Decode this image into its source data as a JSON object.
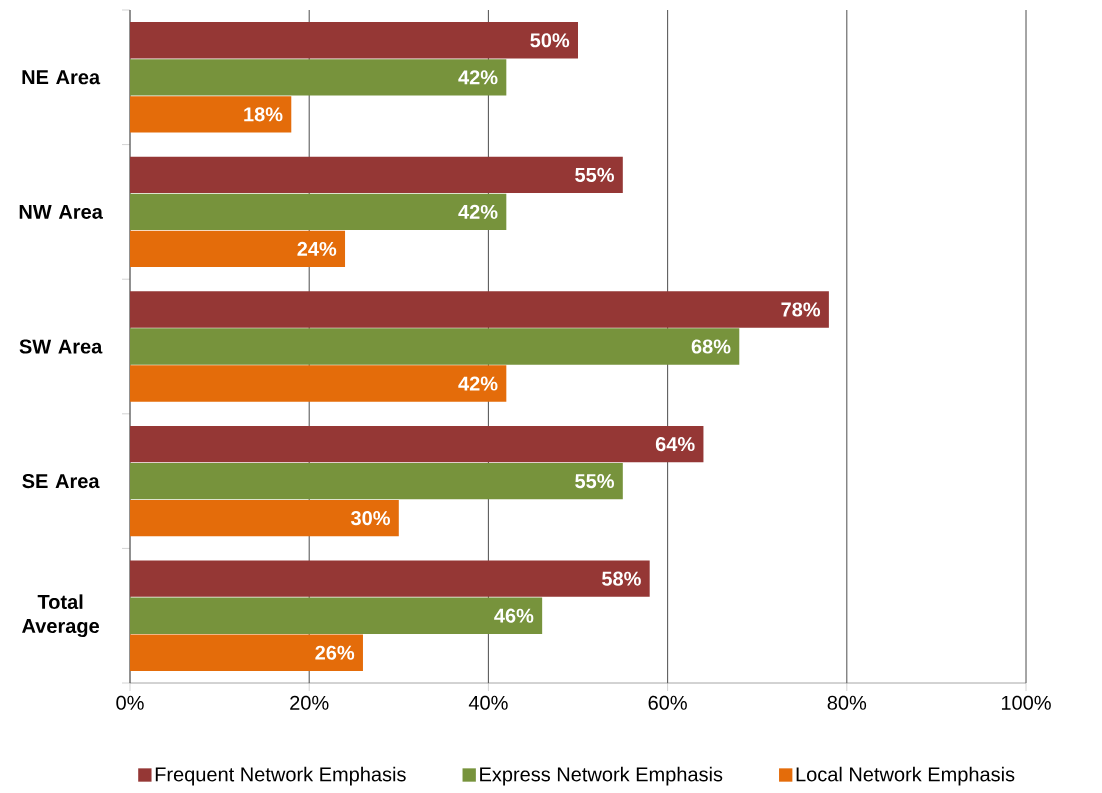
{
  "chart_data": {
    "type": "bar",
    "orientation": "horizontal",
    "categories": [
      "NE Area",
      "NW Area",
      "SW Area",
      "SE Area",
      "Total Average"
    ],
    "series": [
      {
        "name": "Frequent Network Emphasis",
        "color": "#953735",
        "values": [
          50,
          55,
          78,
          64,
          58
        ],
        "value_labels": [
          "50%",
          "55%",
          "78%",
          "64%",
          "58%"
        ]
      },
      {
        "name": "Express Network Emphasis",
        "color": "#77933c",
        "values": [
          42,
          42,
          68,
          55,
          46
        ],
        "value_labels": [
          "42%",
          "42%",
          "68%",
          "55%",
          "46%"
        ]
      },
      {
        "name": "Local Network Emphasis",
        "color": "#e46c0a",
        "values": [
          18,
          24,
          42,
          30,
          26
        ],
        "value_labels": [
          "18%",
          "24%",
          "42%",
          "30%",
          "26%"
        ]
      }
    ],
    "xlim": [
      0,
      100
    ],
    "xticks": [
      {
        "value": 0,
        "label": "0%"
      },
      {
        "value": 20,
        "label": "20%"
      },
      {
        "value": 40,
        "label": "40%"
      },
      {
        "value": 60,
        "label": "60%"
      },
      {
        "value": 80,
        "label": "80%"
      },
      {
        "value": 100,
        "label": "100%"
      }
    ],
    "grid": "x",
    "legend": "bottom"
  }
}
